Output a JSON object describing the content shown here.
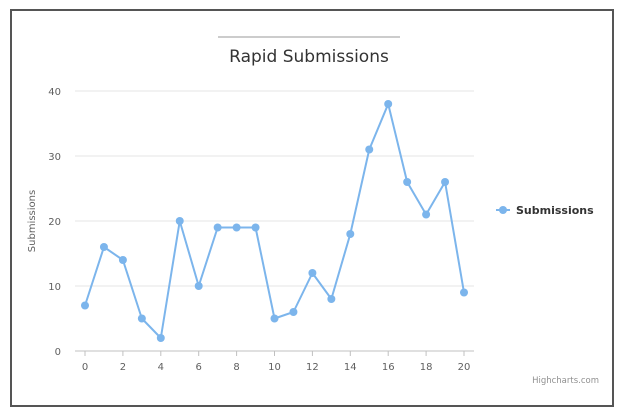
{
  "chart_data": {
    "type": "line",
    "title": "Rapid Submissions",
    "ylabel": "Submissions",
    "xlabel": "",
    "x": [
      0,
      1,
      2,
      3,
      4,
      5,
      6,
      7,
      8,
      9,
      10,
      11,
      12,
      13,
      14,
      15,
      16,
      17,
      18,
      19,
      20
    ],
    "x_ticks": [
      0,
      2,
      4,
      6,
      8,
      10,
      12,
      14,
      16,
      18,
      20
    ],
    "y_ticks": [
      0,
      10,
      20,
      30,
      40
    ],
    "xlim": [
      0,
      20
    ],
    "ylim": [
      0,
      40
    ],
    "grid": "horizontal",
    "legend_position": "right",
    "series": [
      {
        "name": "Submissions",
        "color": "#7cb5ec",
        "values": [
          7,
          16,
          14,
          5,
          2,
          20,
          10,
          19,
          19,
          19,
          5,
          6,
          12,
          8,
          18,
          31,
          38,
          26,
          21,
          26,
          9
        ]
      }
    ],
    "credits": "Highcharts.com"
  }
}
